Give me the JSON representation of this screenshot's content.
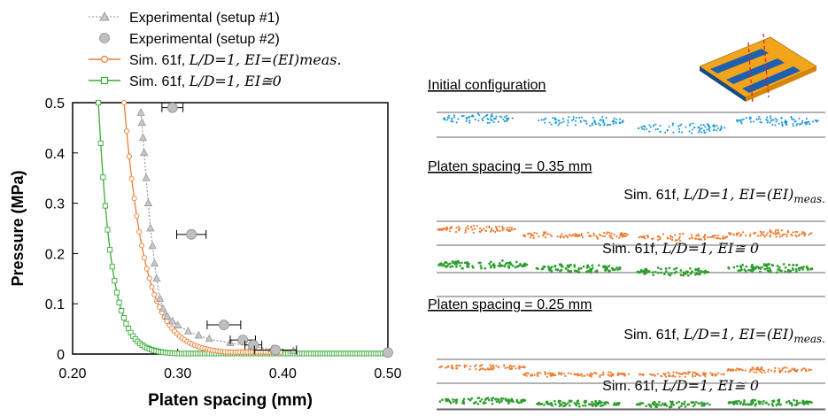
{
  "chart_data": {
    "type": "scatter",
    "xlabel": "Platen spacing (mm)",
    "ylabel": "Pressure (MPa)",
    "xlim": [
      0.2,
      0.5
    ],
    "ylim": [
      0,
      0.5
    ],
    "xticks": [
      "0.20",
      "0.30",
      "0.40",
      "0.50"
    ],
    "yticks": [
      "0",
      "0.1",
      "0.2",
      "0.3",
      "0.4",
      "0.5"
    ],
    "grid": false,
    "legend_position": "top-left",
    "series": [
      {
        "name": "Experimental (setup #1)",
        "color": "#a6a6a6",
        "marker": "triangle",
        "line": "dotted",
        "x": [
          0.265,
          0.266,
          0.267,
          0.268,
          0.27,
          0.272,
          0.274,
          0.276,
          0.278,
          0.28,
          0.283,
          0.286,
          0.29,
          0.295,
          0.3,
          0.31,
          0.32,
          0.33,
          0.35,
          0.37,
          0.39,
          0.41
        ],
        "y": [
          0.48,
          0.46,
          0.43,
          0.4,
          0.35,
          0.3,
          0.25,
          0.215,
          0.18,
          0.15,
          0.11,
          0.09,
          0.075,
          0.065,
          0.057,
          0.045,
          0.037,
          0.03,
          0.022,
          0.015,
          0.01,
          0.006
        ]
      },
      {
        "name": "Experimental (setup #2)",
        "color": "#bfbfbf",
        "marker": "circle",
        "x": [
          0.295,
          0.313,
          0.344,
          0.362,
          0.372,
          0.393,
          0.5
        ],
        "y": [
          0.49,
          0.238,
          0.058,
          0.028,
          0.018,
          0.008,
          0.003
        ],
        "xerr": [
          0.01,
          0.014,
          0.016,
          0.012,
          0.008,
          0.02,
          0.0
        ]
      },
      {
        "name_prefix": "Sim. 61f, ",
        "name_math": "L/D=1, EI=(EI)meas.",
        "color": "#ed7d31",
        "marker": "open-circle",
        "x_start": 0.249,
        "x_end": 0.4,
        "step": 0.0024,
        "y0": 0.5,
        "k": 50,
        "floor": 0.004
      },
      {
        "name_prefix": "Sim. 61f, ",
        "name_math": "L/D=1, EI≅0",
        "color": "#3aab3a",
        "marker": "open-square",
        "x_start": 0.2245,
        "x_end": 0.5,
        "step": 0.0022,
        "y0": 0.5,
        "k": 80,
        "floor": 0.001
      }
    ]
  },
  "cross_sections": {
    "initial_label": "Initial configuration",
    "platen_035_label": "Platen spacing = 0.35 mm",
    "platen_025_label": "Platen spacing = 0.25 mm",
    "sim_meas_prefix": "Sim. 61f, ",
    "sim_meas_math": "L/D=1, EI=(EI)",
    "sim_meas_sub": "meas.",
    "sim_zero_prefix": "Sim. 61f, ",
    "sim_zero_math": "L/D=1, EI≅ 0",
    "colors": {
      "initial": "#1e9ad6",
      "meas": "#ed7d31",
      "zero": "#2e9e2e"
    }
  },
  "weave_icon": {
    "colors": {
      "blue": "#1f5fb0",
      "orange": "#f2a51a",
      "cut": "#e02020"
    }
  }
}
